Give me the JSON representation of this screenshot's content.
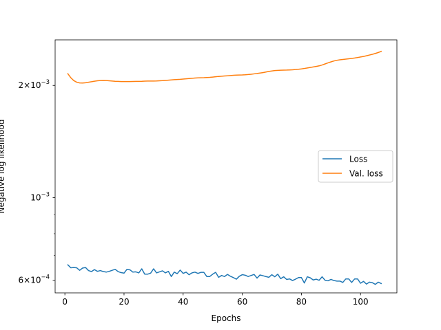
{
  "chart_data": {
    "type": "line",
    "title": "",
    "xlabel": "Epochs",
    "ylabel": "Negative log likelihood",
    "yscale": "log",
    "xlim": [
      -3.3,
      112.3
    ],
    "ylim": [
      0.000555,
      0.00265
    ],
    "grid": false,
    "legend_position": "center-right",
    "x_ticks": [
      0,
      20,
      40,
      60,
      80,
      100
    ],
    "x_tick_labels": [
      "0",
      "20",
      "40",
      "60",
      "80",
      "100"
    ],
    "y_major_ticks": [
      {
        "value": 0.0006,
        "base": "6",
        "exp": "10",
        "pow": "−4"
      },
      {
        "value": 0.001,
        "base": "",
        "exp": "10",
        "pow": "−3"
      },
      {
        "value": 0.002,
        "base": "2",
        "exp": "10",
        "pow": "−3"
      }
    ],
    "y_minor_ticks": [
      0.0007,
      0.0008,
      0.0009
    ],
    "series": [
      {
        "name": "Loss",
        "color": "#1f77b4",
        "x": [
          1,
          2,
          3,
          4,
          5,
          6,
          7,
          8,
          9,
          10,
          11,
          12,
          13,
          14,
          15,
          16,
          17,
          18,
          19,
          20,
          21,
          22,
          23,
          24,
          25,
          26,
          27,
          28,
          29,
          30,
          31,
          32,
          33,
          34,
          35,
          36,
          37,
          38,
          39,
          40,
          41,
          42,
          43,
          44,
          45,
          46,
          47,
          48,
          49,
          50,
          51,
          52,
          53,
          54,
          55,
          56,
          57,
          58,
          59,
          60,
          61,
          62,
          63,
          64,
          65,
          66,
          67,
          68,
          69,
          70,
          71,
          72,
          73,
          74,
          75,
          76,
          77,
          78,
          79,
          80,
          81,
          82,
          83,
          84,
          85,
          86,
          87,
          88,
          89,
          90,
          91,
          92,
          93,
          94,
          95,
          96,
          97,
          98,
          99,
          100,
          101,
          102,
          103,
          104,
          105,
          106,
          107
        ],
        "y": [
          0.00066,
          0.000648,
          0.000649,
          0.000648,
          0.000638,
          0.000647,
          0.000649,
          0.000637,
          0.000633,
          0.000641,
          0.000634,
          0.000637,
          0.000633,
          0.000631,
          0.000634,
          0.000638,
          0.000642,
          0.000633,
          0.000629,
          0.000627,
          0.000642,
          0.00064,
          0.000631,
          0.000632,
          0.000628,
          0.000644,
          0.000623,
          0.000623,
          0.000627,
          0.000644,
          0.000628,
          0.000632,
          0.000636,
          0.000628,
          0.000634,
          0.000614,
          0.000631,
          0.000625,
          0.000639,
          0.000626,
          0.000631,
          0.000621,
          0.000628,
          0.000631,
          0.000626,
          0.00063,
          0.00063,
          0.000614,
          0.000614,
          0.000623,
          0.00063,
          0.000611,
          0.000618,
          0.000614,
          0.000622,
          0.000615,
          0.00061,
          0.000604,
          0.000615,
          0.000621,
          0.000619,
          0.000614,
          0.000618,
          0.000622,
          0.000608,
          0.00062,
          0.000617,
          0.000614,
          0.000611,
          0.000621,
          0.000613,
          0.000623,
          0.000606,
          0.000613,
          0.000603,
          0.000605,
          0.000599,
          0.000604,
          0.00061,
          0.00061,
          0.00059,
          0.000613,
          0.000609,
          0.000601,
          0.000604,
          0.0006,
          0.000613,
          0.0006,
          0.000598,
          0.000603,
          0.000599,
          0.000597,
          0.000597,
          0.000592,
          0.000605,
          0.000605,
          0.000592,
          0.000605,
          0.000605,
          0.000589,
          0.000596,
          0.000586,
          0.000593,
          0.000591,
          0.000585,
          0.000593,
          0.000588
        ]
      },
      {
        "name": "Val. loss",
        "color": "#ff7f0e",
        "x": [
          1,
          2,
          3,
          4,
          5,
          6,
          7,
          8,
          9,
          10,
          11,
          12,
          13,
          14,
          15,
          16,
          17,
          18,
          19,
          20,
          21,
          22,
          23,
          24,
          25,
          26,
          27,
          28,
          29,
          30,
          31,
          32,
          33,
          34,
          35,
          36,
          37,
          38,
          39,
          40,
          41,
          42,
          43,
          44,
          45,
          46,
          47,
          48,
          49,
          50,
          51,
          52,
          53,
          54,
          55,
          56,
          57,
          58,
          59,
          60,
          61,
          62,
          63,
          64,
          65,
          66,
          67,
          68,
          69,
          70,
          71,
          72,
          73,
          74,
          75,
          76,
          77,
          78,
          79,
          80,
          81,
          82,
          83,
          84,
          85,
          86,
          87,
          88,
          89,
          90,
          91,
          92,
          93,
          94,
          95,
          96,
          97,
          98,
          99,
          100,
          101,
          102,
          103,
          104,
          105,
          106,
          107
        ],
        "y": [
          0.00215,
          0.002097,
          0.002061,
          0.00204,
          0.002031,
          0.00203,
          0.002033,
          0.00204,
          0.002046,
          0.002053,
          0.002058,
          0.002061,
          0.002062,
          0.002061,
          0.002058,
          0.002055,
          0.002052,
          0.00205,
          0.002048,
          0.002048,
          0.002048,
          0.002048,
          0.002049,
          0.00205,
          0.002051,
          0.002052,
          0.002054,
          0.002055,
          0.002055,
          0.002055,
          0.002056,
          0.002058,
          0.00206,
          0.002063,
          0.002066,
          0.002069,
          0.002072,
          0.002075,
          0.002077,
          0.00208,
          0.002083,
          0.002087,
          0.00209,
          0.002093,
          0.002096,
          0.002097,
          0.002098,
          0.0021,
          0.002102,
          0.002106,
          0.00211,
          0.002114,
          0.002117,
          0.00212,
          0.002123,
          0.002126,
          0.002129,
          0.002131,
          0.002133,
          0.002134,
          0.002136,
          0.002139,
          0.002143,
          0.002148,
          0.002153,
          0.002159,
          0.002165,
          0.002173,
          0.002181,
          0.002187,
          0.002192,
          0.002195,
          0.002197,
          0.002198,
          0.002199,
          0.002201,
          0.002203,
          0.002206,
          0.00221,
          0.002215,
          0.002221,
          0.002228,
          0.002235,
          0.002242,
          0.002249,
          0.002257,
          0.002269,
          0.002284,
          0.002299,
          0.002313,
          0.002326,
          0.002336,
          0.002343,
          0.002348,
          0.002353,
          0.002358,
          0.002363,
          0.002369,
          0.002376,
          0.002384,
          0.002392,
          0.002402,
          0.002413,
          0.002424,
          0.002437,
          0.002451,
          0.002468
        ]
      }
    ]
  }
}
